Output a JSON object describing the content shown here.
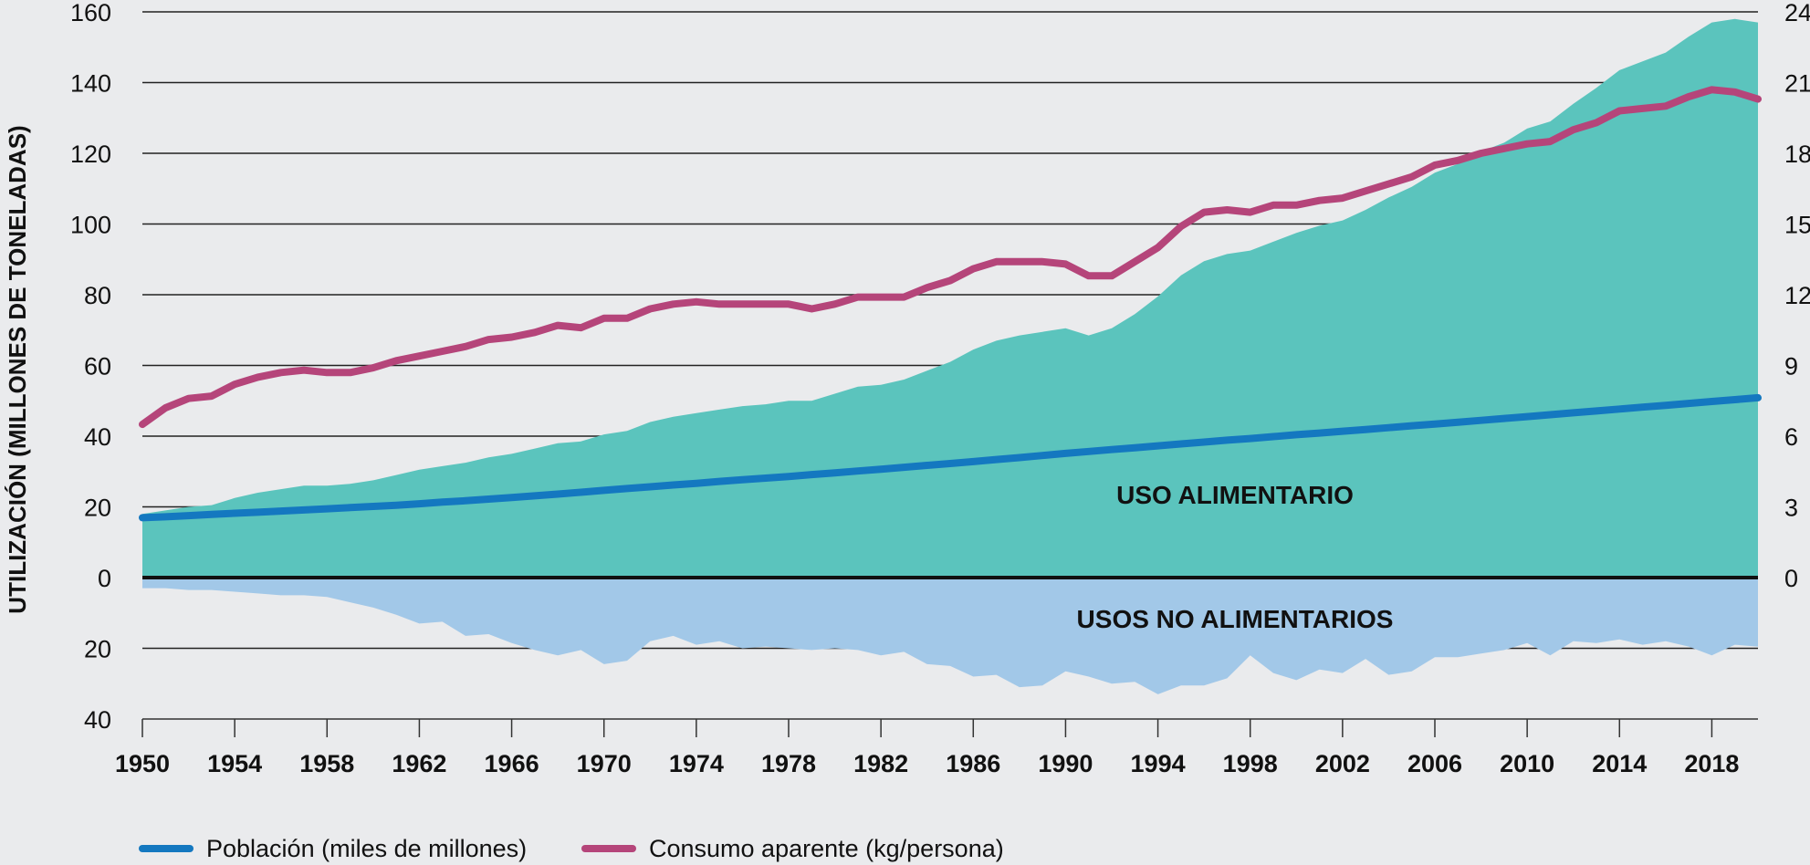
{
  "chart_data": {
    "type": "area",
    "title": "",
    "ylabel": "UTILIZACIÓN (MILLONES DE TONELADAS)",
    "y2label": "",
    "xlabel": "",
    "xlim": [
      1950,
      2020
    ],
    "ylim": [
      -40,
      160
    ],
    "y2lim": [
      0,
      24
    ],
    "grid": true,
    "x_ticks": [
      1950,
      1954,
      1958,
      1962,
      1966,
      1970,
      1974,
      1978,
      1982,
      1986,
      1990,
      1994,
      1998,
      2002,
      2006,
      2010,
      2014,
      2018
    ],
    "y_ticks": [
      160,
      140,
      120,
      100,
      80,
      60,
      40,
      20,
      0,
      20,
      40
    ],
    "y_tick_values": [
      160,
      140,
      120,
      100,
      80,
      60,
      40,
      20,
      0,
      -20,
      -40
    ],
    "y2_ticks": [
      24,
      21,
      18,
      15,
      12,
      9,
      6,
      3,
      0
    ],
    "area_labels": {
      "food": "USO ALIMENTARIO",
      "nonfood": "USOS NO ALIMENTARIOS"
    },
    "colors": {
      "food": "#5bc4bd",
      "nonfood": "#a2c8e8",
      "population": "#1478c0",
      "consumption": "#b5457a",
      "background": "#eaebed"
    },
    "legend_position": "bottom-left",
    "legend": [
      {
        "name": "Población (miles de millones)",
        "color": "#1478c0"
      },
      {
        "name": "Consumo aparente (kg/persona)",
        "color": "#b5457a"
      }
    ],
    "x": [
      1950,
      1951,
      1952,
      1953,
      1954,
      1955,
      1956,
      1957,
      1958,
      1959,
      1960,
      1961,
      1962,
      1963,
      1964,
      1965,
      1966,
      1967,
      1968,
      1969,
      1970,
      1971,
      1972,
      1973,
      1974,
      1975,
      1976,
      1977,
      1978,
      1979,
      1980,
      1981,
      1982,
      1983,
      1984,
      1985,
      1986,
      1987,
      1988,
      1989,
      1990,
      1991,
      1992,
      1993,
      1994,
      1995,
      1996,
      1997,
      1998,
      1999,
      2000,
      2001,
      2002,
      2003,
      2004,
      2005,
      2006,
      2007,
      2008,
      2009,
      2010,
      2011,
      2012,
      2013,
      2014,
      2015,
      2016,
      2017,
      2018,
      2019,
      2020
    ],
    "series": [
      {
        "name": "Uso alimentario (millones de toneladas)",
        "axis": "left",
        "kind": "area",
        "values": [
          18,
          19,
          20,
          20.5,
          22.5,
          24,
          25,
          26,
          26,
          26.5,
          27.5,
          29,
          30.5,
          31.5,
          32.5,
          34,
          35,
          36.5,
          38,
          38.5,
          40.5,
          41.5,
          44,
          45.5,
          46.5,
          47.5,
          48.5,
          49,
          50,
          50,
          52,
          54,
          54.5,
          56,
          58.5,
          61,
          64.5,
          67,
          68.5,
          69.5,
          70.5,
          68.5,
          70.5,
          74.5,
          79.5,
          85.5,
          89.5,
          91.5,
          92.5,
          95,
          97.5,
          99.5,
          101,
          104,
          107.5,
          110.5,
          114.5,
          117,
          120.5,
          123,
          127,
          129,
          134,
          138.5,
          143.5,
          146,
          148.5,
          153,
          157,
          158,
          157
        ]
      },
      {
        "name": "Usos no alimentarios (millones de toneladas)",
        "axis": "left",
        "kind": "area-below",
        "values": [
          3,
          3,
          3.5,
          3.5,
          4,
          4.5,
          5,
          5,
          5.5,
          7,
          8.5,
          10.5,
          13,
          12.5,
          16.5,
          16,
          18.5,
          20.5,
          22,
          20.5,
          24.5,
          23.5,
          18,
          16.5,
          19,
          18,
          20,
          19.5,
          20,
          20.5,
          20,
          20.5,
          22,
          21,
          24.5,
          25,
          28,
          27.5,
          31,
          30.5,
          26.5,
          28,
          30,
          29.5,
          33,
          30.5,
          30.5,
          28.5,
          22,
          27,
          29,
          26,
          27,
          23,
          27.5,
          26.5,
          22.5,
          22.5,
          21.5,
          20.5,
          18.5,
          22,
          18,
          18.5,
          17.5,
          19,
          18,
          19.5,
          22,
          19,
          19.5
        ]
      },
      {
        "name": "Población (miles de millones)",
        "axis": "right",
        "kind": "line",
        "values": [
          2.54,
          2.58,
          2.63,
          2.68,
          2.73,
          2.77,
          2.82,
          2.87,
          2.92,
          2.97,
          3.02,
          3.07,
          3.13,
          3.2,
          3.26,
          3.33,
          3.4,
          3.47,
          3.54,
          3.62,
          3.7,
          3.78,
          3.85,
          3.93,
          4.0,
          4.08,
          4.15,
          4.22,
          4.29,
          4.37,
          4.44,
          4.52,
          4.6,
          4.68,
          4.76,
          4.84,
          4.92,
          5.01,
          5.09,
          5.18,
          5.27,
          5.35,
          5.43,
          5.51,
          5.59,
          5.67,
          5.75,
          5.83,
          5.9,
          5.98,
          6.06,
          6.13,
          6.21,
          6.28,
          6.36,
          6.44,
          6.51,
          6.59,
          6.67,
          6.75,
          6.83,
          6.91,
          6.99,
          7.07,
          7.15,
          7.23,
          7.31,
          7.39,
          7.47,
          7.55,
          7.63
        ]
      },
      {
        "name": "Consumo aparente (kg/persona)",
        "axis": "right",
        "kind": "line",
        "values": [
          6.5,
          7.2,
          7.6,
          7.7,
          8.2,
          8.5,
          8.7,
          8.8,
          8.7,
          8.7,
          8.9,
          9.2,
          9.4,
          9.6,
          9.8,
          10.1,
          10.2,
          10.4,
          10.7,
          10.6,
          11.0,
          11.0,
          11.4,
          11.6,
          11.7,
          11.6,
          11.6,
          11.6,
          11.6,
          11.4,
          11.6,
          11.9,
          11.9,
          11.9,
          12.3,
          12.6,
          13.1,
          13.4,
          13.4,
          13.4,
          13.3,
          12.8,
          12.8,
          13.4,
          14.0,
          14.9,
          15.5,
          15.6,
          15.5,
          15.8,
          15.8,
          16.0,
          16.1,
          16.4,
          16.7,
          17.0,
          17.5,
          17.7,
          18.0,
          18.2,
          18.4,
          18.5,
          19.0,
          19.3,
          19.8,
          19.9,
          20.0,
          20.4,
          20.7,
          20.6,
          20.3
        ]
      }
    ]
  }
}
